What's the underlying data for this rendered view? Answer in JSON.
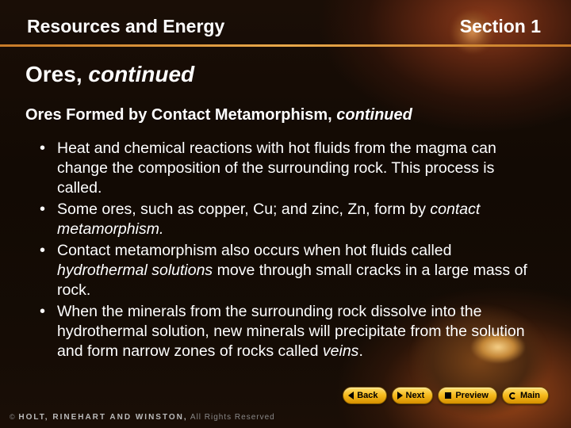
{
  "header": {
    "chapter": "Resources and Energy",
    "section": "Section 1",
    "underline_color": "#e8a84a"
  },
  "title": {
    "main": "Ores, ",
    "cont": "continued"
  },
  "subtitle": {
    "main": "Ores Formed by Contact Metamorphism, ",
    "cont": "continued"
  },
  "bullets": [
    {
      "runs": [
        {
          "t": "Heat and chemical reactions with hot fluids from the magma can change the composition of the surrounding rock. This process is called."
        }
      ]
    },
    {
      "runs": [
        {
          "t": "Some ores, such as copper, Cu; and zinc, Zn, form by "
        },
        {
          "t": "contact metamorphism.",
          "i": true
        }
      ]
    },
    {
      "runs": [
        {
          "t": "Contact metamorphism also occurs when hot fluids called "
        },
        {
          "t": "hydrothermal solutions",
          "i": true
        },
        {
          "t": " move through small cracks in a large mass of rock."
        }
      ]
    },
    {
      "runs": [
        {
          "t": "When the minerals from the surrounding rock dissolve into the hydrothermal solution, new minerals will precipitate from the solution and form narrow zones of rocks called "
        },
        {
          "t": "veins",
          "i": true
        },
        {
          "t": "."
        }
      ]
    }
  ],
  "nav": {
    "back": "Back",
    "next": "Next",
    "preview": "Preview",
    "main": "Main",
    "button_bg": "#f5b81a"
  },
  "footer": {
    "copyright": "©",
    "brand": "HOLT, RINEHART AND WINSTON,",
    "rights": " All Rights Reserved"
  },
  "colors": {
    "text": "#ffffff",
    "background_dark": "#120a04",
    "accent_orange": "#c77a28"
  }
}
